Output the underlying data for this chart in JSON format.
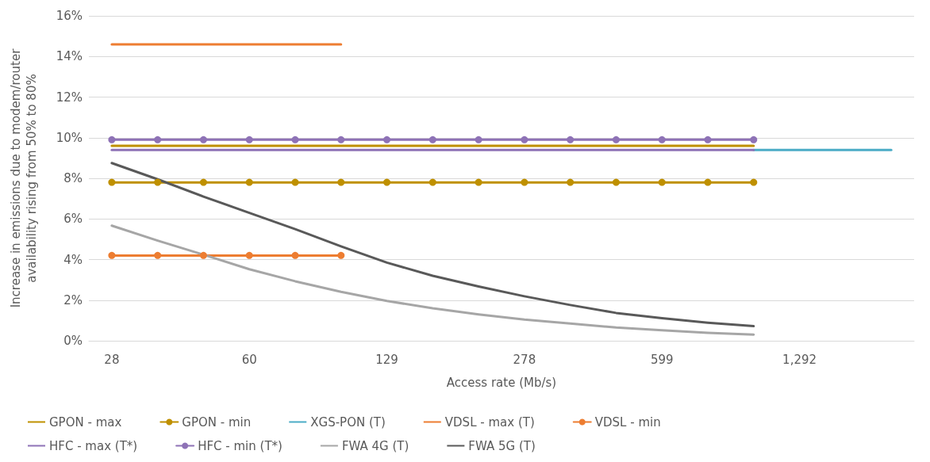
{
  "chart_data": {
    "type": "line",
    "xlabel": "Access rate (Mb/s)",
    "ylabel": "Increase in emissions due to modem/router\navailability rising from 50% to 80%",
    "categories": [
      "28",
      null,
      null,
      "60",
      null,
      null,
      "129",
      null,
      null,
      "278",
      null,
      null,
      "599",
      null,
      null,
      "1,292",
      null,
      null
    ],
    "ylim": [
      0,
      16
    ],
    "yticks": [
      {
        "value": 0,
        "label": "0%"
      },
      {
        "value": 2,
        "label": "2%"
      },
      {
        "value": 4,
        "label": "4%"
      },
      {
        "value": 6,
        "label": "6%"
      },
      {
        "value": 8,
        "label": "8%"
      },
      {
        "value": 10,
        "label": "10%"
      },
      {
        "value": 12,
        "label": "12%"
      },
      {
        "value": 14,
        "label": "14%"
      },
      {
        "value": 16,
        "label": "16%"
      }
    ],
    "grid": "y",
    "legend": "bottom",
    "line_style": "solid",
    "series": [
      {
        "name": "GPON - max",
        "color": "#bf9000",
        "marker": "none",
        "values": [
          9.6,
          9.6,
          9.6,
          9.6,
          9.6,
          9.6,
          9.6,
          9.6,
          9.6,
          9.6,
          9.6,
          9.6,
          9.6,
          9.6,
          9.6,
          null,
          null,
          null
        ]
      },
      {
        "name": "GPON - min",
        "color": "#bf9000",
        "marker": "circle",
        "values": [
          7.8,
          7.8,
          7.8,
          7.8,
          7.8,
          7.8,
          7.8,
          7.8,
          7.8,
          7.8,
          7.8,
          7.8,
          7.8,
          7.8,
          7.8,
          null,
          null,
          null
        ]
      },
      {
        "name": "XGS-PON (T)",
        "color": "#4bacc6",
        "marker": "none",
        "values": [
          null,
          null,
          null,
          null,
          null,
          null,
          null,
          null,
          null,
          null,
          null,
          null,
          null,
          null,
          9.4,
          9.4,
          9.4,
          9.4
        ]
      },
      {
        "name": "VDSL - max (T)",
        "color": "#ed7d31",
        "marker": "none",
        "values": [
          14.6,
          14.6,
          14.6,
          14.6,
          14.6,
          14.6,
          null,
          null,
          null,
          null,
          null,
          null,
          null,
          null,
          null,
          null,
          null,
          null
        ]
      },
      {
        "name": "VDSL - min",
        "color": "#ed7d31",
        "marker": "circle",
        "values": [
          4.2,
          4.2,
          4.2,
          4.2,
          4.2,
          4.2,
          null,
          null,
          null,
          null,
          null,
          null,
          null,
          null,
          null,
          null,
          null,
          null
        ]
      },
      {
        "name": "HFC - max (T*)",
        "color": "#8e72b6",
        "marker": "none",
        "values": [
          9.4,
          9.4,
          9.4,
          9.4,
          9.4,
          9.4,
          9.4,
          9.4,
          9.4,
          9.4,
          9.4,
          9.4,
          9.4,
          9.4,
          9.4,
          null,
          null,
          null
        ]
      },
      {
        "name": "HFC - min (T*)",
        "color": "#8e72b6",
        "marker": "circle",
        "values": [
          9.9,
          9.9,
          9.9,
          9.9,
          9.9,
          9.9,
          9.9,
          9.9,
          9.9,
          9.9,
          9.9,
          9.9,
          9.9,
          9.9,
          9.9,
          null,
          null,
          null
        ]
      },
      {
        "name": "FWA 4G (T)",
        "color": "#a6a6a6",
        "marker": "none",
        "values": [
          5.67,
          4.93,
          4.24,
          3.52,
          2.93,
          2.41,
          1.96,
          1.6,
          1.3,
          1.04,
          0.85,
          0.65,
          0.52,
          0.39,
          0.3,
          null,
          null,
          null
        ]
      },
      {
        "name": "FWA 5G (T)",
        "color": "#595959",
        "marker": "none",
        "values": [
          8.75,
          7.95,
          7.1,
          6.3,
          5.5,
          4.65,
          3.85,
          3.2,
          2.67,
          2.19,
          1.76,
          1.37,
          1.11,
          0.89,
          0.72,
          null,
          null,
          null
        ]
      }
    ]
  }
}
